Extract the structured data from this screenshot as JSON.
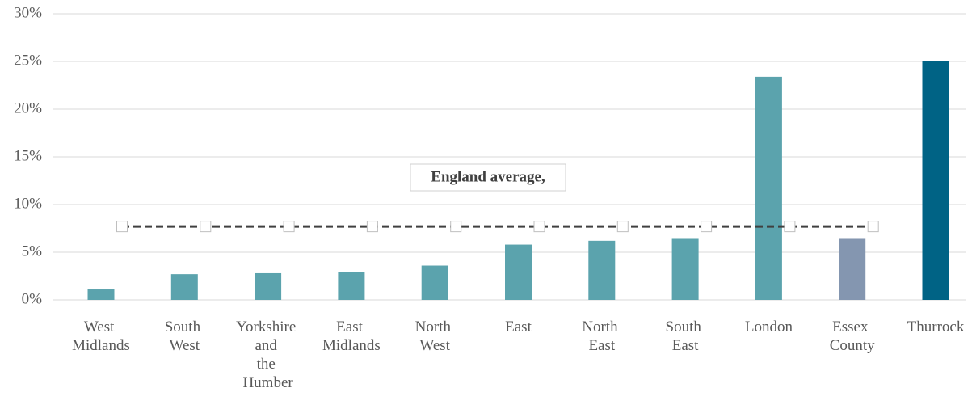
{
  "chart_data": {
    "type": "bar",
    "categories": [
      "West Midlands",
      "South West",
      "Yorkshire and the Humber",
      "East Midlands",
      "North West",
      "East",
      "North East",
      "South East",
      "London",
      "Essex County",
      "Thurrock"
    ],
    "values": [
      1.1,
      2.7,
      2.8,
      2.9,
      3.6,
      5.8,
      6.2,
      6.4,
      23.4,
      6.4,
      25.0
    ],
    "colors": [
      "#5ba3ad",
      "#5ba3ad",
      "#5ba3ad",
      "#5ba3ad",
      "#5ba3ad",
      "#5ba3ad",
      "#5ba3ad",
      "#5ba3ad",
      "#5ba3ad",
      "#8496b0",
      "#006385"
    ],
    "line_series": {
      "color": "#404040",
      "values": [
        7.7,
        7.7,
        7.7,
        7.7,
        7.7,
        7.7,
        7.7,
        7.7,
        7.7,
        7.7,
        null
      ]
    },
    "annotation": "England average,",
    "ylim": [
      0,
      30
    ],
    "yticks": [
      {
        "value": 0,
        "label": "0%"
      },
      {
        "value": 5,
        "label": "5%"
      },
      {
        "value": 10,
        "label": "10%"
      },
      {
        "value": 15,
        "label": "15%"
      },
      {
        "value": 20,
        "label": "20%"
      },
      {
        "value": 25,
        "label": "25%"
      },
      {
        "value": 30,
        "label": "30%"
      }
    ],
    "grid": true
  }
}
